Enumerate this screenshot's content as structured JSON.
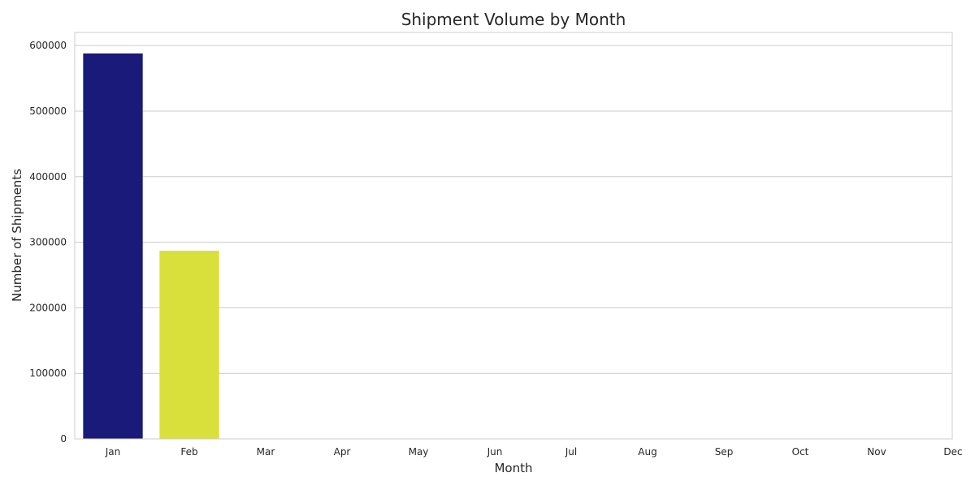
{
  "chart_data": {
    "type": "bar",
    "title": "Shipment Volume by Month",
    "xlabel": "Month",
    "ylabel": "Number of Shipments",
    "categories": [
      "Jan",
      "Feb",
      "Mar",
      "Apr",
      "May",
      "Jun",
      "Jul",
      "Aug",
      "Sep",
      "Oct",
      "Nov",
      "Dec"
    ],
    "values": [
      588000,
      287000,
      0,
      0,
      0,
      0,
      0,
      0,
      0,
      0,
      0,
      0
    ],
    "colors": [
      "#1a1a7a",
      "#d9e03b",
      "#4a4a8a",
      "#4a6e9a",
      "#3f8a9a",
      "#3aa28e",
      "#4fb47a",
      "#7ac45e",
      "#a6d04a",
      "#c8d83e",
      "#d9e03b",
      "#e8e43a"
    ],
    "ylim": [
      0,
      620000
    ],
    "yticks": [
      0,
      100000,
      200000,
      300000,
      400000,
      500000,
      600000
    ],
    "ytick_labels": [
      "0",
      "100000",
      "200000",
      "300000",
      "400000",
      "500000",
      "600000"
    ],
    "grid": true,
    "grid_axis": "y",
    "background": "#ffffff",
    "grid_color": "#cccccc",
    "spine_color": "#cccccc"
  }
}
